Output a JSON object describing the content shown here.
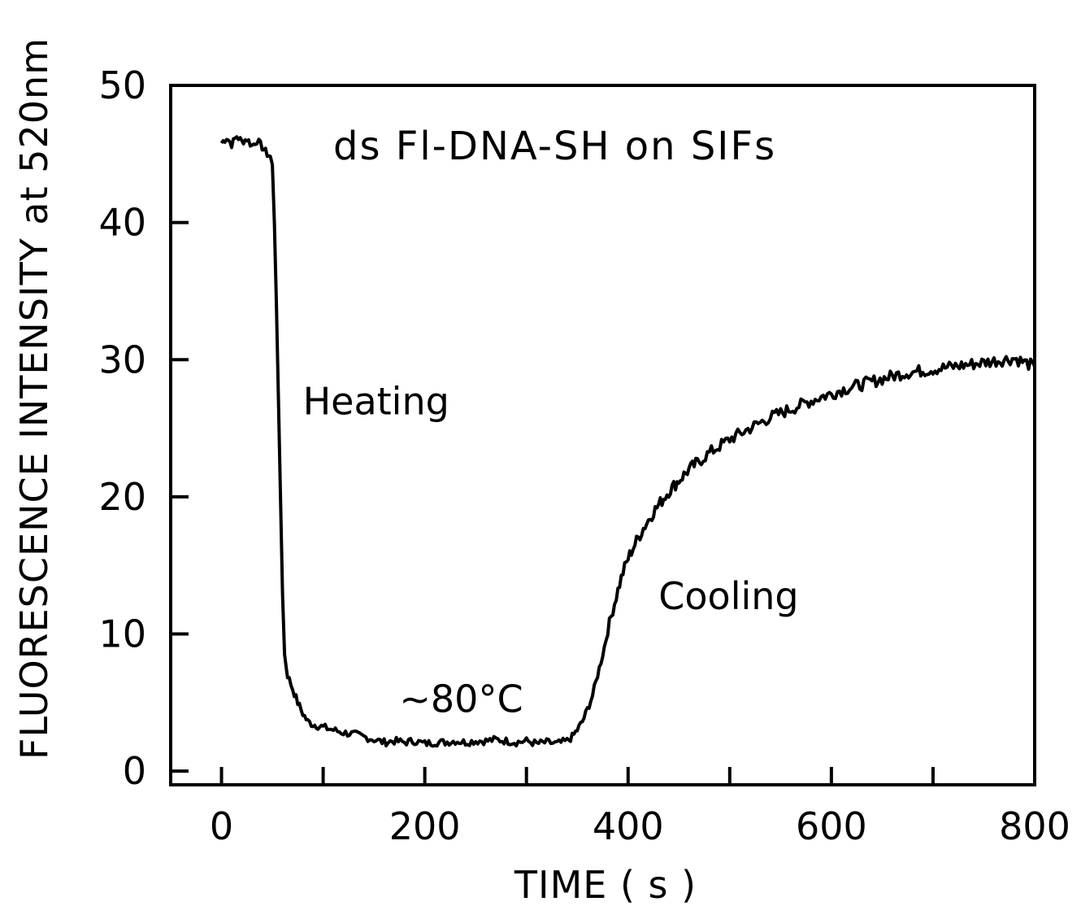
{
  "chart_data": {
    "type": "line",
    "title": "ds Fl-DNA-SH on SIFs",
    "xlabel": "TIME ( s )",
    "ylabel": "FLUORESCENCE INTENSITY at 520nm",
    "xlim": [
      -50,
      800
    ],
    "ylim": [
      -1,
      50
    ],
    "xticks": [
      0,
      200,
      400,
      600,
      800
    ],
    "yticks": [
      0,
      10,
      20,
      30,
      40,
      50
    ],
    "x_minor_ticks": [
      100,
      300,
      500,
      700
    ],
    "grid": false,
    "annotations": [
      {
        "text": "Heating",
        "x": 80,
        "y": 26
      },
      {
        "text": "~80°C",
        "x": 175,
        "y": 4.3
      },
      {
        "text": "Cooling",
        "x": 430,
        "y": 11.8
      }
    ],
    "series": [
      {
        "x": [
          0,
          5,
          10,
          15,
          20,
          25,
          30,
          35,
          40,
          45,
          48,
          50,
          52,
          54,
          56,
          58,
          60,
          62,
          65,
          70,
          75,
          80,
          85,
          90,
          95,
          100,
          110,
          120,
          130,
          140,
          150,
          160,
          170,
          180,
          190,
          200,
          210,
          220,
          230,
          240,
          250,
          260,
          270,
          280,
          290,
          300,
          310,
          320,
          330,
          340,
          345,
          350,
          355,
          360,
          365,
          370,
          375,
          380,
          385,
          390,
          395,
          400,
          405,
          410,
          415,
          420,
          425,
          430,
          435,
          440,
          445,
          450,
          455,
          460,
          465,
          470,
          480,
          490,
          500,
          510,
          520,
          530,
          540,
          550,
          560,
          570,
          580,
          590,
          600,
          610,
          620,
          630,
          640,
          650,
          660,
          670,
          680,
          690,
          700,
          710,
          720,
          730,
          740,
          750,
          760,
          770,
          780,
          790,
          800
        ],
        "y": [
          45.8,
          46.2,
          45.7,
          46.3,
          45.9,
          46.1,
          45.6,
          46.0,
          45.5,
          45.0,
          44.8,
          44.2,
          40.0,
          34.0,
          27.0,
          20.0,
          13.0,
          8.5,
          7.0,
          6.0,
          5.0,
          4.2,
          3.6,
          3.4,
          3.3,
          3.2,
          3.0,
          2.8,
          2.7,
          2.5,
          2.3,
          2.1,
          2.2,
          2.1,
          2.2,
          2.0,
          2.1,
          2.1,
          2.2,
          2.1,
          2.2,
          2.2,
          2.3,
          2.2,
          2.1,
          2.2,
          2.0,
          2.1,
          2.0,
          2.2,
          2.5,
          3.0,
          3.6,
          4.5,
          5.5,
          7.0,
          8.5,
          10.2,
          11.8,
          13.2,
          14.5,
          15.5,
          16.3,
          17.0,
          17.7,
          18.3,
          18.9,
          19.4,
          19.9,
          20.4,
          20.8,
          21.2,
          21.6,
          22.0,
          22.3,
          22.6,
          23.2,
          23.7,
          24.2,
          24.6,
          25.0,
          25.4,
          25.8,
          26.1,
          26.4,
          26.7,
          27.0,
          27.3,
          27.5,
          27.8,
          28.0,
          28.2,
          28.4,
          28.6,
          28.8,
          29.0,
          29.1,
          29.2,
          29.3,
          29.4,
          29.5,
          29.6,
          29.7,
          29.8,
          29.9,
          30.0,
          30.1,
          29.8,
          29.5
        ]
      }
    ]
  }
}
